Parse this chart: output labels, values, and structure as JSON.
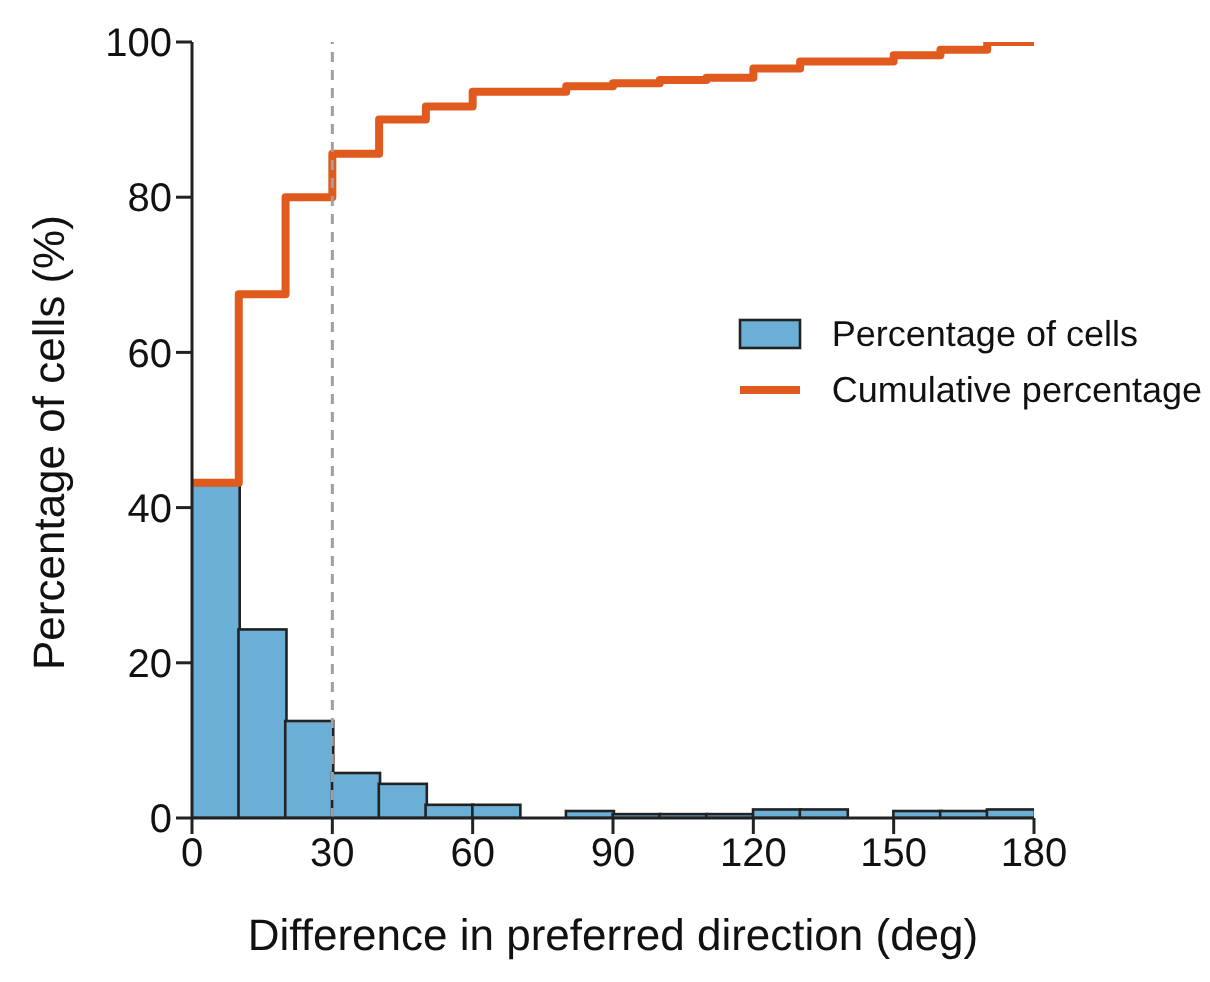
{
  "chart_data": {
    "type": "histogram",
    "xlabel": "Difference in preferred direction (deg)",
    "ylabel": "Percentage of cells (%)",
    "bins": [
      0,
      10,
      20,
      30,
      40,
      50,
      60,
      70,
      80,
      90,
      100,
      110,
      120,
      130,
      140,
      150,
      160,
      170,
      180
    ],
    "series": [
      {
        "name": "Percentage of cells",
        "color": "#6baed6",
        "values": [
          43.2,
          24.3,
          12.5,
          5.8,
          4.4,
          1.7,
          1.7,
          0,
          0.9,
          0.5,
          0.5,
          0.5,
          1.1,
          1.1,
          0,
          0.9,
          0.9,
          1.1
        ]
      },
      {
        "name": "Cumulative percentage",
        "type": "step",
        "color": "#e05a1e",
        "x": [
          0,
          10,
          20,
          30,
          40,
          50,
          60,
          70,
          80,
          90,
          100,
          110,
          120,
          130,
          140,
          150,
          160,
          170,
          180
        ],
        "values": [
          43.2,
          67.5,
          80,
          85.6,
          90.0,
          91.7,
          93.6,
          93.6,
          94.3,
          94.7,
          95.1,
          95.4,
          96.6,
          97.5,
          97.5,
          98.3,
          99.0,
          100,
          100
        ]
      }
    ],
    "xlim": [
      0,
      180
    ],
    "xticks": [
      0,
      30,
      60,
      90,
      120,
      150,
      180
    ],
    "ylim": [
      0,
      100
    ],
    "yticks": [
      0,
      20,
      40,
      60,
      80,
      100
    ],
    "ref_lines": [
      {
        "axis": "x",
        "value": 30,
        "color": "#a0a0a0",
        "line_style": "dashed"
      }
    ],
    "grid": false,
    "legend": "right"
  }
}
